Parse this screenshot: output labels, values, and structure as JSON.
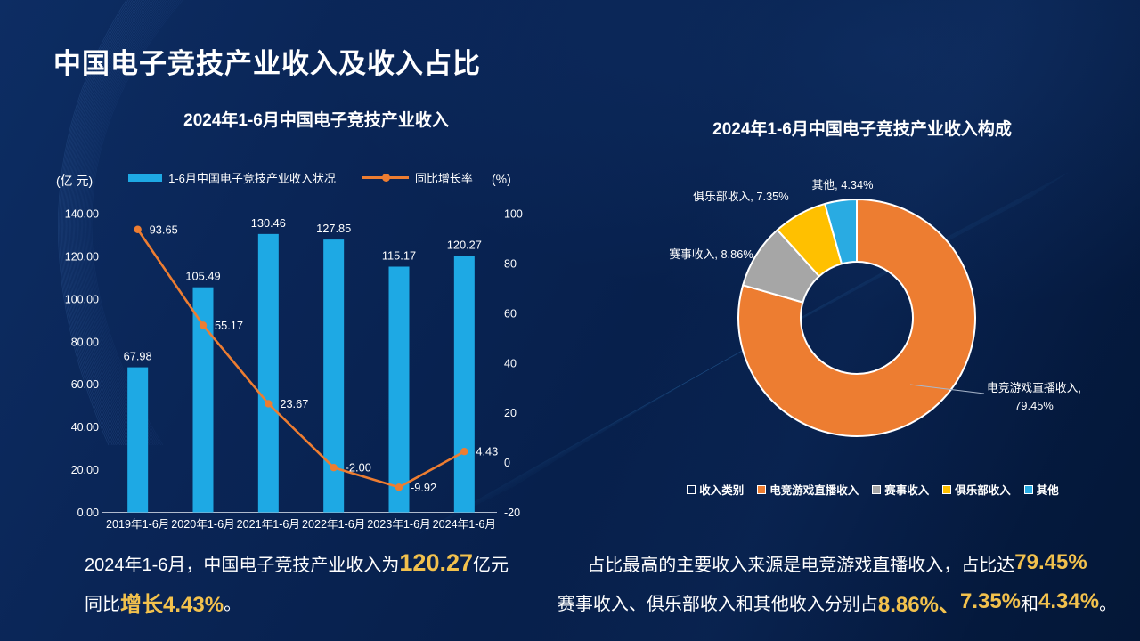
{
  "page_title": "中国电子竞技产业收入及收入占比",
  "colors": {
    "bar_blue": "#1ea9e4",
    "line_orange": "#ed7d31",
    "gray": "#a6a6a6",
    "yellow": "#ffc000",
    "gold_text": "#f2c14d",
    "axis_line": "#cdd6e4",
    "leader_line": "#aab8cc"
  },
  "left_chart": {
    "title": "2024年1-6月中国电子竞技产业收入",
    "left_axis_unit": "(亿 元)",
    "right_axis_unit": "(%)",
    "legend": {
      "bar_label": "1-6月中国电子竞技产业收入状况",
      "line_label": "同比增长率"
    },
    "summary": {
      "line1": [
        {
          "text": "2024年1-6月，中国电子竞技产业收入为",
          "style": "n"
        },
        {
          "text": "120.27",
          "style": "gl"
        },
        {
          "text": "亿元",
          "style": "n"
        }
      ],
      "line2": [
        {
          "text": "同比",
          "style": "n"
        },
        {
          "text": "增长4.43%",
          "style": "g"
        },
        {
          "text": "。",
          "style": "n"
        }
      ]
    }
  },
  "right_chart": {
    "title": "2024年1-6月中国电子竞技产业收入构成",
    "summary": {
      "line1": [
        {
          "text": "占比最高的主要收入来源是电竞游戏直播收入，占比达",
          "style": "n"
        },
        {
          "text": "79.45%",
          "style": "g"
        }
      ],
      "line2": [
        {
          "text": "赛事收入、俱乐部收入和其他收入分别占",
          "style": "n"
        },
        {
          "text": "8.86%、",
          "style": "g"
        },
        {
          "text": "7.35%",
          "style": "g"
        },
        {
          "text": "和",
          "style": "n"
        },
        {
          "text": "4.34%",
          "style": "g"
        },
        {
          "text": "。",
          "style": "n"
        }
      ]
    }
  },
  "chart_data": [
    {
      "type": "bar",
      "title": "2024年1-6月中国电子竞技产业收入",
      "categories": [
        "2019年1-6月",
        "2020年1-6月",
        "2021年1-6月",
        "2022年1-6月",
        "2023年1-6月",
        "2024年1-6月"
      ],
      "series": [
        {
          "name": "1-6月中国电子竞技产业收入状况",
          "type": "bar",
          "axis": "left",
          "color": "#1ea9e4",
          "values": [
            67.98,
            105.49,
            130.46,
            127.85,
            115.17,
            120.27
          ]
        },
        {
          "name": "同比增长率",
          "type": "line",
          "axis": "right",
          "color": "#ed7d31",
          "values": [
            93.65,
            55.17,
            23.67,
            -2.0,
            -9.92,
            4.43
          ]
        }
      ],
      "left_axis": {
        "label": "(亿 元)",
        "min": 0,
        "max": 140,
        "tick_step": 20,
        "decimals": 2
      },
      "right_axis": {
        "label": "(%)",
        "min": -20,
        "max": 100,
        "tick_step": 20,
        "decimals": 0
      },
      "grid": false,
      "legend_position": "top"
    },
    {
      "type": "pie",
      "donut": true,
      "title": "2024年1-6月中国电子竞技产业收入构成",
      "series_name": "收入类别",
      "slices": [
        {
          "label": "电竞游戏直播收入",
          "value": 79.45,
          "color": "#ed7d31"
        },
        {
          "label": "赛事收入",
          "value": 8.86,
          "color": "#a6a6a6"
        },
        {
          "label": "俱乐部收入",
          "value": 7.35,
          "color": "#ffc000"
        },
        {
          "label": "其他",
          "value": 4.34,
          "color": "#29abe2"
        }
      ],
      "legend_position": "bottom",
      "label_format": "label, value%"
    }
  ]
}
